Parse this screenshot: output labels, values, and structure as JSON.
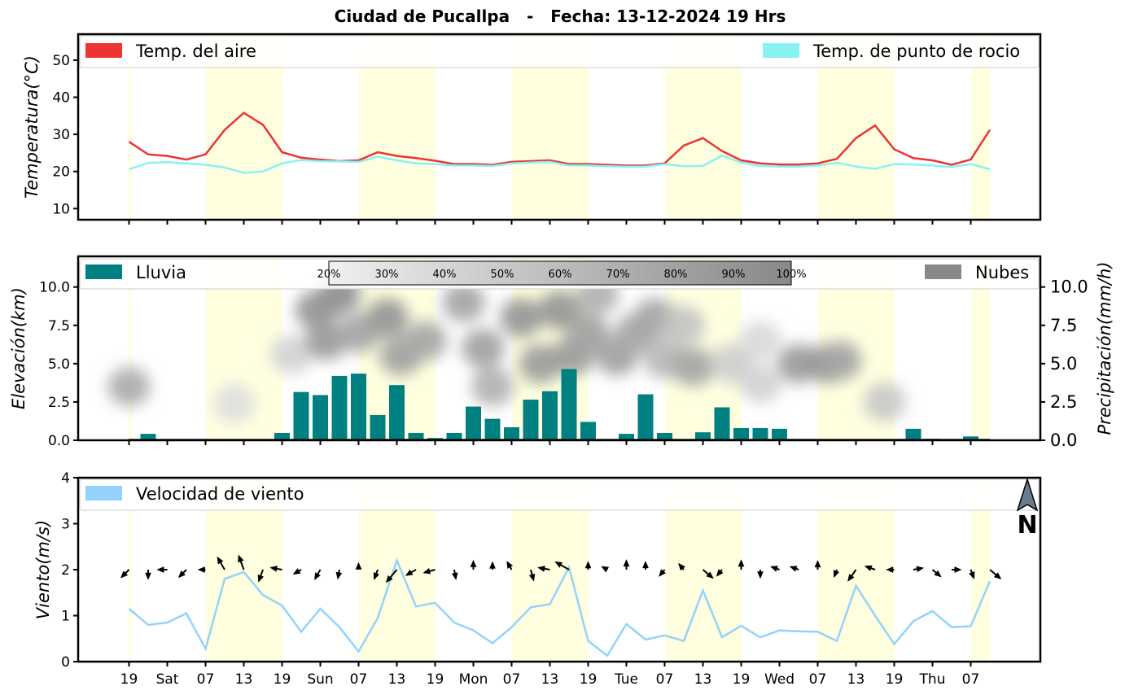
{
  "title": "Ciudad de Pucallpa   -   Fecha: 13-12-2024 19 Hrs",
  "x_ticks": [
    "19",
    "Sat",
    "07",
    "13",
    "19",
    "Sun",
    "07",
    "13",
    "19",
    "Mon",
    "07",
    "13",
    "19",
    "Tue",
    "07",
    "13",
    "19",
    "Wed",
    "07",
    "13",
    "19",
    "Thu",
    "07"
  ],
  "compass_label": "N",
  "colors": {
    "air_temp": "#ee3333",
    "dew_point": "#88f2f2",
    "rain": "#008080",
    "clouds": "#888888",
    "wind": "#93d3fb",
    "daylight": "#ffffe0",
    "compass": "#6b7b8f"
  },
  "chart_data": [
    {
      "type": "line",
      "ylabel": "Temperatura(°C)",
      "ylim": [
        7,
        57
      ],
      "yticks": [
        10,
        20,
        30,
        40,
        50
      ],
      "legend_placement": "top",
      "series": [
        {
          "name": "Temp. del aire",
          "values": [
            28,
            24.6,
            24.2,
            23.2,
            24.6,
            31.2,
            35.8,
            32.6,
            25.2,
            23.7,
            23.2,
            22.8,
            23,
            25.2,
            24.2,
            23.6,
            22.9,
            22,
            22,
            21.8,
            22.6,
            22.8,
            23,
            22,
            22,
            21.8,
            21.6,
            21.6,
            22.2,
            27,
            29,
            25.5,
            23,
            22.2,
            21.9,
            21.9,
            22.2,
            23.4,
            29,
            32.4,
            26,
            23.6,
            23,
            21.8,
            23.2,
            31.2
          ]
        },
        {
          "name": "Temp. de punto de rocio",
          "values": [
            20.6,
            22.3,
            22.5,
            22.2,
            21.8,
            21.1,
            19.6,
            20,
            22.2,
            23.1,
            22.8,
            22.7,
            22.6,
            24,
            23,
            22.2,
            22,
            21.6,
            21.6,
            21.5,
            22.2,
            22.4,
            22.6,
            21.6,
            21.6,
            21.4,
            21.3,
            21.3,
            22,
            21.4,
            21.5,
            24.3,
            22.4,
            21.5,
            21.3,
            21.3,
            21.6,
            22.4,
            21.3,
            20.7,
            22,
            21.9,
            21.6,
            21.2,
            22,
            20.6
          ]
        }
      ]
    },
    {
      "type": "bar",
      "ylabel": "Elevación(km)",
      "y2label": "Precipitación(mm/h)",
      "ylim": [
        0,
        12
      ],
      "yticks": [
        "0.0",
        "2.5",
        "5.0",
        "7.5",
        "10.0"
      ],
      "colorbar_ticks": [
        "20%",
        "30%",
        "40%",
        "50%",
        "60%",
        "70%",
        "80%",
        "90%",
        "100%"
      ],
      "legend_placement": "top",
      "series": [
        {
          "name": "Lluvia",
          "values": [
            0.05,
            0.42,
            0.05,
            0.03,
            0.03,
            0.05,
            0.05,
            0.05,
            0.48,
            3.15,
            2.95,
            4.2,
            4.35,
            1.65,
            3.6,
            0.48,
            0.15,
            0.48,
            2.2,
            1.4,
            0.85,
            2.65,
            3.2,
            4.65,
            1.2,
            0.03,
            0.42,
            3,
            0.48,
            0.03,
            0.52,
            2.15,
            0.8,
            0.8,
            0.75,
            0.05,
            0.03,
            0.03,
            0.03,
            0.03,
            0.03,
            0.75,
            0.1,
            0.05,
            0.25,
            0.03
          ]
        },
        {
          "name": "Nubes",
          "cloud_cells": [
            {
              "hour": 0,
              "elev": 3.5,
              "density": 0.65
            },
            {
              "hour": 5.5,
              "elev": 2.4,
              "density": 0.2
            },
            {
              "hour": 8.5,
              "elev": 5.6,
              "density": 0.3
            },
            {
              "hour": 9.8,
              "elev": 8.5,
              "density": 0.85
            },
            {
              "hour": 10.3,
              "elev": 6.5,
              "density": 0.8
            },
            {
              "hour": 11,
              "elev": 9.5,
              "density": 0.9
            },
            {
              "hour": 12,
              "elev": 7,
              "density": 0.7
            },
            {
              "hour": 13.5,
              "elev": 8,
              "density": 0.85
            },
            {
              "hour": 14.2,
              "elev": 5.5,
              "density": 0.75
            },
            {
              "hour": 15.5,
              "elev": 6.5,
              "density": 0.7
            },
            {
              "hour": 17.5,
              "elev": 9,
              "density": 0.7
            },
            {
              "hour": 18.5,
              "elev": 6,
              "density": 0.75
            },
            {
              "hour": 19,
              "elev": 3.5,
              "density": 0.6
            },
            {
              "hour": 20.5,
              "elev": 8,
              "density": 0.85
            },
            {
              "hour": 21.5,
              "elev": 5,
              "density": 0.8
            },
            {
              "hour": 22.5,
              "elev": 8.5,
              "density": 0.85
            },
            {
              "hour": 23.2,
              "elev": 5.5,
              "density": 0.8
            },
            {
              "hour": 24,
              "elev": 7,
              "density": 0.75
            },
            {
              "hour": 24.5,
              "elev": 9.5,
              "density": 0.6
            },
            {
              "hour": 25.5,
              "elev": 5.5,
              "density": 0.75
            },
            {
              "hour": 26.5,
              "elev": 7,
              "density": 0.7
            },
            {
              "hour": 27.5,
              "elev": 8,
              "density": 0.7
            },
            {
              "hour": 28,
              "elev": 5.3,
              "density": 0.55
            },
            {
              "hour": 29,
              "elev": 7.5,
              "density": 0.45
            },
            {
              "hour": 29.5,
              "elev": 4.8,
              "density": 0.7
            },
            {
              "hour": 31.5,
              "elev": 5,
              "density": 0.35
            },
            {
              "hour": 33,
              "elev": 6.5,
              "density": 0.25
            },
            {
              "hour": 33,
              "elev": 3.7,
              "density": 0.3
            },
            {
              "hour": 35,
              "elev": 5,
              "density": 0.8
            },
            {
              "hour": 36.5,
              "elev": 5,
              "density": 0.85
            },
            {
              "hour": 37.2,
              "elev": 5.2,
              "density": 0.7
            },
            {
              "hour": 39.5,
              "elev": 2.5,
              "density": 0.4
            }
          ]
        }
      ]
    },
    {
      "type": "line",
      "ylabel": "Viento(m/s)",
      "ylim": [
        0,
        4
      ],
      "yticks": [
        0,
        1,
        2,
        3,
        4
      ],
      "legend_placement": "top-left",
      "series": [
        {
          "name": "Velocidad de viento",
          "values": [
            1.15,
            0.8,
            0.85,
            1.05,
            0.28,
            1.8,
            1.95,
            1.45,
            1.22,
            0.65,
            1.15,
            0.75,
            0.22,
            0.95,
            2.2,
            1.2,
            1.28,
            0.85,
            0.68,
            0.4,
            0.75,
            1.18,
            1.25,
            2.05,
            0.45,
            0.13,
            0.82,
            0.48,
            0.57,
            0.45,
            1.55,
            0.53,
            0.78,
            0.53,
            0.68,
            0.66,
            0.65,
            0.45,
            1.65,
            1.0,
            0.38,
            0.88,
            1.1,
            0.75,
            0.77,
            1.75
          ]
        }
      ],
      "wind_dir_deg": [
        225,
        180,
        270,
        225,
        270,
        330,
        340,
        200,
        280,
        240,
        210,
        190,
        0,
        200,
        220,
        240,
        255,
        170,
        0,
        0,
        330,
        165,
        280,
        300,
        0,
        300,
        0,
        0,
        220,
        320,
        130,
        220,
        0,
        180,
        290,
        290,
        0,
        200,
        215,
        290,
        270,
        80,
        130,
        90,
        160,
        130
      ]
    }
  ]
}
